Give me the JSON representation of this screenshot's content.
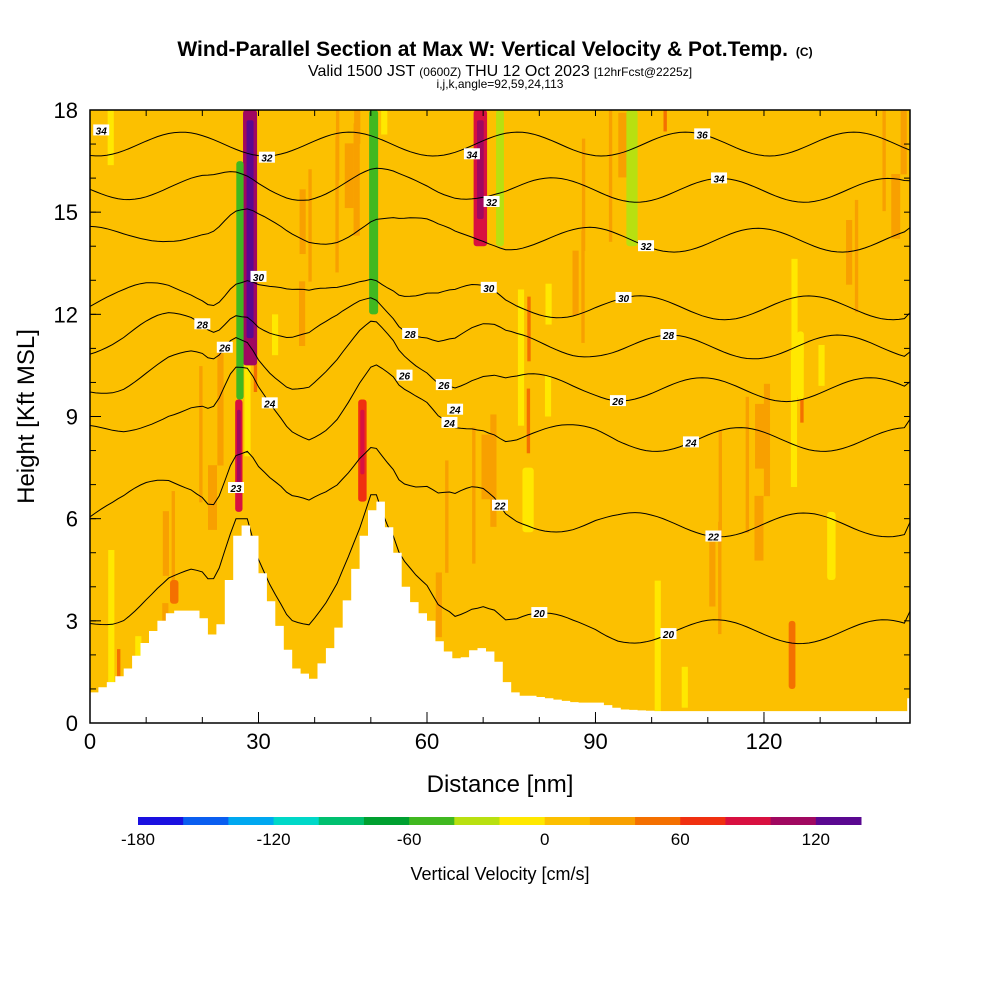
{
  "title": {
    "main": "Wind-Parallel Section at Max W: Vertical Velocity & Pot.Temp.",
    "copyright": "(C)",
    "valid_prefix": "Valid 1500 JST",
    "valid_utc": "(0600Z)",
    "valid_date": "THU 12 Oct 2023",
    "forecast": "[12hrFcst@2225z]",
    "params": "i,j,k,angle=92,59,24,113"
  },
  "chart_data": {
    "type": "heatmap",
    "xlabel": "Distance [nm]",
    "ylabel": "Height [Kft MSL]",
    "xlim": [
      0,
      146
    ],
    "ylim": [
      0,
      18
    ],
    "x_ticks": [
      0,
      30,
      60,
      90,
      120
    ],
    "y_ticks": [
      0,
      3,
      6,
      9,
      12,
      15,
      18
    ],
    "grid": false,
    "colorbar": {
      "label": "Vertical Velocity [cm/s]",
      "min": -180,
      "max": 140,
      "step": 20,
      "tick_values": [
        -180,
        -120,
        -60,
        0,
        60,
        120
      ],
      "tick_labels": [
        "-180",
        "-120",
        "-60",
        "0",
        "60",
        "120"
      ],
      "colors": [
        "#1a10e0",
        "#0a5ef0",
        "#00a8f0",
        "#00d8c8",
        "#00c070",
        "#00a030",
        "#40b820",
        "#b8e010",
        "#ffe800",
        "#fcc000",
        "#f8a000",
        "#f47000",
        "#f03010",
        "#d81040",
        "#a00860",
        "#5a0890"
      ]
    },
    "terrain": [
      [
        0,
        0.9
      ],
      [
        2,
        1.1
      ],
      [
        4,
        1.3
      ],
      [
        6,
        1.6
      ],
      [
        8,
        2.1
      ],
      [
        10,
        2.6
      ],
      [
        12,
        3.0
      ],
      [
        14,
        3.3
      ],
      [
        16,
        3.3
      ],
      [
        18,
        3.3
      ],
      [
        20,
        3.0
      ],
      [
        21,
        2.6
      ],
      [
        22,
        2.6
      ],
      [
        23,
        3.2
      ],
      [
        24,
        4.2
      ],
      [
        25,
        5.2
      ],
      [
        26,
        5.8
      ],
      [
        27,
        5.8
      ],
      [
        28,
        5.8
      ],
      [
        29,
        5.2
      ],
      [
        30,
        4.4
      ],
      [
        32,
        3.3
      ],
      [
        34,
        2.4
      ],
      [
        35,
        1.9
      ],
      [
        36,
        1.6
      ],
      [
        38,
        1.4
      ],
      [
        39,
        1.3
      ],
      [
        40,
        1.6
      ],
      [
        42,
        2.2
      ],
      [
        44,
        3.0
      ],
      [
        46,
        4.2
      ],
      [
        48,
        5.5
      ],
      [
        50,
        6.5
      ],
      [
        51,
        6.5
      ],
      [
        52,
        6.0
      ],
      [
        54,
        5.0
      ],
      [
        55,
        4.2
      ],
      [
        56,
        3.8
      ],
      [
        58,
        3.3
      ],
      [
        60,
        3.0
      ],
      [
        61,
        2.6
      ],
      [
        62,
        2.2
      ],
      [
        64,
        2.0
      ],
      [
        65,
        1.8
      ],
      [
        68,
        2.2
      ],
      [
        70,
        2.2
      ],
      [
        72,
        1.8
      ],
      [
        74,
        1.0
      ],
      [
        76,
        0.8
      ],
      [
        78,
        0.8
      ],
      [
        82,
        0.7
      ],
      [
        86,
        0.6
      ],
      [
        90,
        0.6
      ],
      [
        94,
        0.4
      ],
      [
        100,
        0.35
      ],
      [
        110,
        0.35
      ],
      [
        120,
        0.35
      ],
      [
        130,
        0.35
      ],
      [
        140,
        0.35
      ],
      [
        145,
        0.35
      ],
      [
        146,
        1.1
      ]
    ],
    "velocity_features": [
      {
        "x": 28.5,
        "y": [
          10.5,
          18
        ],
        "w": 2.5,
        "v": 110
      },
      {
        "x": 26.5,
        "y": [
          6.2,
          9.5
        ],
        "w": 1.3,
        "v": 80
      },
      {
        "x": 26.7,
        "y": [
          9.5,
          16.5
        ],
        "w": 1.3,
        "v": -50
      },
      {
        "x": 50.5,
        "y": [
          12,
          18
        ],
        "w": 1.6,
        "v": -50
      },
      {
        "x": 48.5,
        "y": [
          6.5,
          9.5
        ],
        "w": 1.5,
        "v": 60
      },
      {
        "x": 69.5,
        "y": [
          14,
          18
        ],
        "w": 2.4,
        "v": 80
      },
      {
        "x": 73,
        "y": [
          14,
          18
        ],
        "w": 1.4,
        "v": -40
      },
      {
        "x": 78,
        "y": [
          5.6,
          7.5
        ],
        "w": 2.0,
        "v": -20
      },
      {
        "x": 96.5,
        "y": [
          14,
          18
        ],
        "w": 2.0,
        "v": -30
      },
      {
        "x": 126.5,
        "y": [
          9.5,
          11.5
        ],
        "w": 1.2,
        "v": -20
      },
      {
        "x": 132,
        "y": [
          4.2,
          6.2
        ],
        "w": 1.5,
        "v": -20
      },
      {
        "x": 125,
        "y": [
          1,
          3
        ],
        "w": 1.2,
        "v": 50
      },
      {
        "x": 15,
        "y": [
          3.5,
          4.2
        ],
        "w": 1.5,
        "v": 50
      }
    ],
    "theta_contours": [
      {
        "label": "20",
        "base": 3.3,
        "labels_at": [
          103,
          80
        ]
      },
      {
        "label": "22",
        "base": 6.3,
        "labels_at": [
          73,
          111
        ]
      },
      {
        "label": "24",
        "base": 8.7,
        "labels_at": [
          32,
          64,
          107
        ]
      },
      {
        "label": "26",
        "base": 10.1,
        "labels_at": [
          24,
          63,
          94
        ]
      },
      {
        "label": "28",
        "base": 11.3,
        "labels_at": [
          20,
          57,
          103
        ]
      },
      {
        "label": "30",
        "base": 12.4,
        "labels_at": [
          71,
          95
        ]
      },
      {
        "label": "32",
        "base": 14.3,
        "labels_at": [
          99
        ]
      },
      {
        "label": "34",
        "base": 15.7,
        "labels_at": [
          112
        ]
      },
      {
        "label": "36",
        "base": 17.0,
        "labels_at": [
          109
        ]
      }
    ],
    "extra_contour_labels": [
      {
        "label": "34",
        "x": 2,
        "y": 17.4
      },
      {
        "label": "32",
        "x": 31.5,
        "y": 16.6
      },
      {
        "label": "30",
        "x": 30,
        "y": 13.1
      },
      {
        "label": "23",
        "x": 26,
        "y": 6.9
      },
      {
        "label": "34",
        "x": 68,
        "y": 16.7
      },
      {
        "label": "32",
        "x": 71.5,
        "y": 15.3
      },
      {
        "label": "26",
        "x": 56,
        "y": 10.2
      },
      {
        "label": "24",
        "x": 65,
        "y": 9.2
      }
    ]
  }
}
